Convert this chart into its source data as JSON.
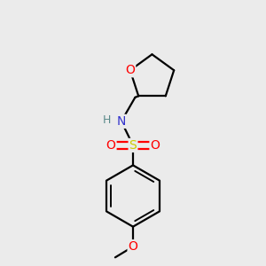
{
  "background_color": "#ebebeb",
  "atom_colors": {
    "C": "#000000",
    "N": "#3333cc",
    "O": "#ff0000",
    "S": "#cccc00",
    "H": "#5b8a8a"
  },
  "bond_lw": 1.6,
  "figsize": [
    3.0,
    3.0
  ],
  "dpi": 100
}
